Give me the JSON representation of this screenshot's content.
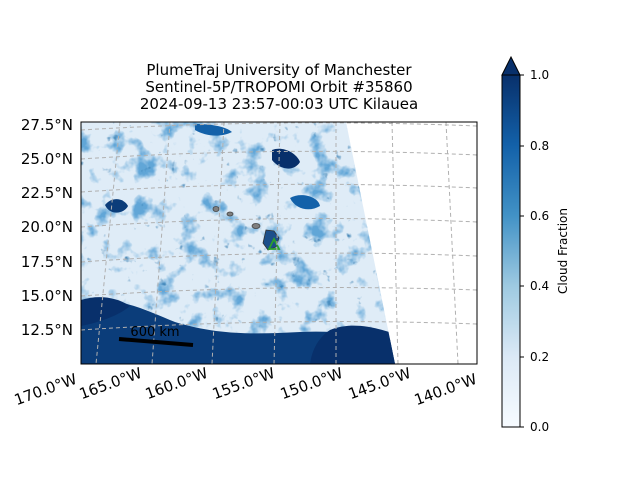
{
  "title_lines": [
    "PlumeTraj    University of Manchester",
    "Sentinel-5P/TROPOMI Orbit #35860",
    "2024-09-13   23:57-00:03 UTC   Kilauea"
  ],
  "lat_labels": [
    "27.5°N",
    "25.0°N",
    "22.5°N",
    "20.0°N",
    "17.5°N",
    "15.0°N",
    "12.5°N"
  ],
  "lon_labels": [
    "170.0°W",
    "165.0°W",
    "160.0°W",
    "155.0°W",
    "150.0°W",
    "145.0°W",
    "140.0°W"
  ],
  "scale_bar_label": "600 km",
  "colorbar": {
    "label": "Cloud Fraction",
    "ticks": [
      "0.0",
      "0.2",
      "0.4",
      "0.6",
      "0.8",
      "1.0"
    ],
    "range": [
      0.0,
      1.0
    ],
    "extend": "max",
    "colormap": "Blues"
  },
  "map": {
    "volcano": "Kilauea",
    "volcano_marker_color": "#2ca02c",
    "gridline_style": "dashed gray"
  }
}
